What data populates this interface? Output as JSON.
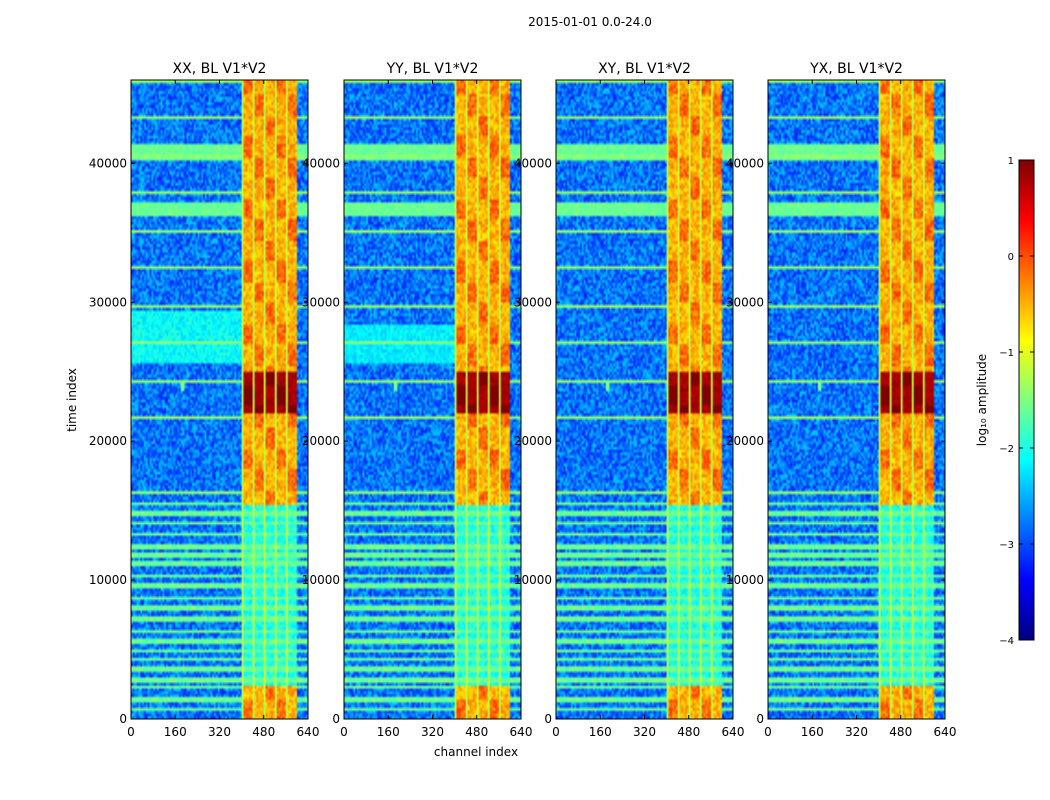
{
  "chart_data": {
    "type": "heatmap",
    "suptitle": "2015-01-01 0.0-24.0",
    "xlabel": "channel index",
    "ylabel": "time index",
    "xlim": [
      0,
      640
    ],
    "ylim": [
      0,
      46000
    ],
    "xticks": [
      0,
      160,
      320,
      480,
      640
    ],
    "yticks": [
      0,
      10000,
      20000,
      30000,
      40000
    ],
    "panels": [
      {
        "title": "XX, BL V1*V2",
        "pol": "XX"
      },
      {
        "title": "YY, BL V1*V2",
        "pol": "YY"
      },
      {
        "title": "XY, BL V1*V2",
        "pol": "XY"
      },
      {
        "title": "YX, BL V1*V2",
        "pol": "YX"
      }
    ],
    "colorbar": {
      "label": "log₁₀ amplitude",
      "range": [
        -4,
        1
      ],
      "ticks": [
        {
          "value": 1,
          "label": "1"
        },
        {
          "value": 0,
          "label": "0"
        },
        {
          "value": -1,
          "label": "−1"
        },
        {
          "value": -2,
          "label": "−2"
        },
        {
          "value": -3,
          "label": "−3"
        },
        {
          "value": -4,
          "label": "−4"
        }
      ],
      "colormap": [
        "#00007f",
        "#0000ff",
        "#007fff",
        "#00ffff",
        "#7fff7f",
        "#ffff00",
        "#ff7f00",
        "#ff0000",
        "#7f0000"
      ]
    },
    "features": {
      "rfi_channel_band": [
        400,
        600
      ],
      "rfi_time_range": [
        0,
        46000
      ],
      "strong_rfi_time_range": [
        22000,
        25000
      ],
      "strong_rfi_level": 0.8,
      "band_rfi_level": -0.5,
      "background_level": -2.8,
      "flagged_time_rows": [
        700,
        1400,
        2300,
        2800,
        3600,
        4300,
        4900,
        5600,
        6300,
        7200,
        8000,
        8700,
        9600,
        10300,
        11200,
        11800,
        12400,
        13300,
        14100,
        14800,
        15500
      ],
      "flagged_row_level": -1.6,
      "bright_time_blocks": [
        [
          36200,
          37200
        ],
        [
          40300,
          41300
        ]
      ],
      "point_source": {
        "channel": 185,
        "time": 24000
      }
    }
  }
}
